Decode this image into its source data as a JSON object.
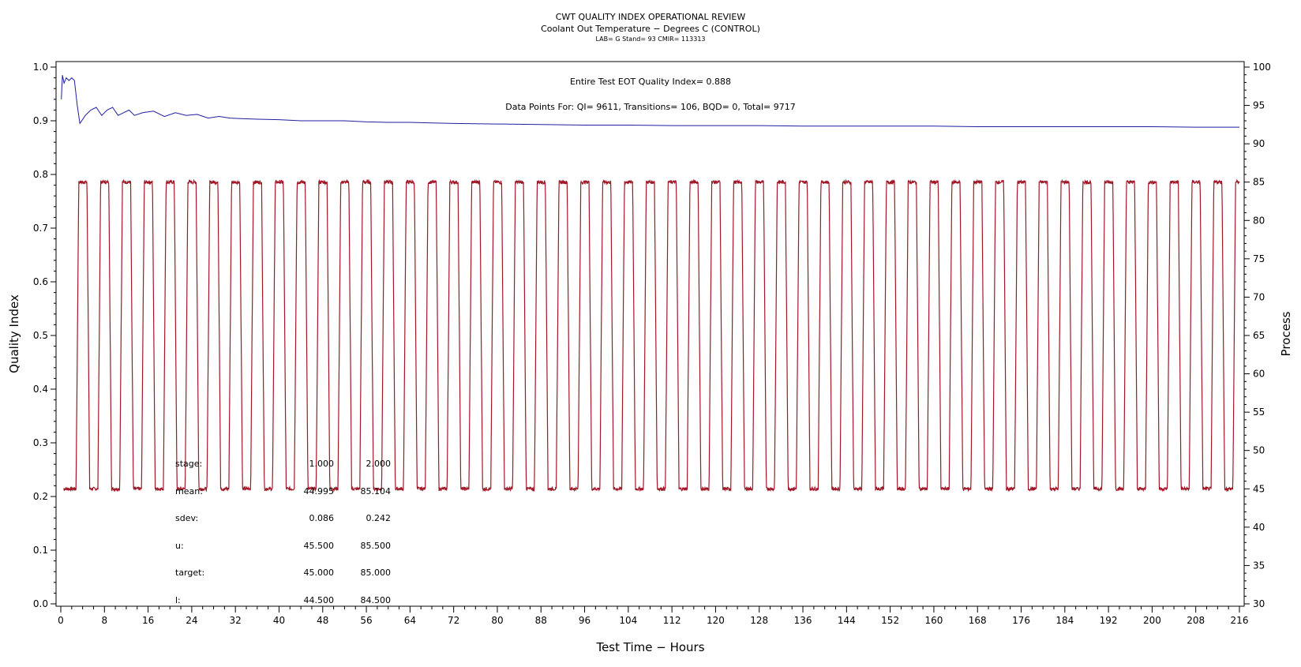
{
  "chart_data": {
    "type": "line",
    "title": "CWT QUALITY INDEX OPERATIONAL REVIEW",
    "subtitle": "Coolant Out Temperature − Degrees C (CONTROL)",
    "subtitle2": "LAB= G Stand= 93 CMIR= 113313",
    "info_line1": "Entire Test EOT Quality Index=   0.888",
    "info_line2": "Data Points For: QI=   9611, Transitions=    106, BQD=      0, Total=   9717",
    "xlabel": "Test Time − Hours",
    "ylabel": "Quality Index",
    "y2label": "Process",
    "xlim": [
      0,
      216
    ],
    "ylim": [
      0,
      1
    ],
    "y2lim": [
      30,
      100
    ],
    "x_ticks": [
      0,
      8,
      16,
      24,
      32,
      40,
      48,
      56,
      64,
      72,
      80,
      88,
      96,
      104,
      112,
      120,
      128,
      136,
      144,
      152,
      160,
      168,
      176,
      184,
      192,
      200,
      208,
      216
    ],
    "x_tick_labels": [
      "0",
      "8",
      "16",
      "24",
      "32",
      "40",
      "48",
      "56",
      "64",
      "72",
      "80",
      "88",
      "96",
      "104",
      "112",
      "120",
      "128",
      "136",
      "144",
      "152",
      "160",
      "168",
      "176",
      "184",
      "192",
      "200",
      "208",
      "216"
    ],
    "y_ticks": [
      0,
      0.1,
      0.2,
      0.3,
      0.4,
      0.5,
      0.6,
      0.7,
      0.8,
      0.9,
      1.0
    ],
    "y_tick_labels": [
      "0.0",
      "0.1",
      "0.2",
      "0.3",
      "0.4",
      "0.5",
      "0.6",
      "0.7",
      "0.8",
      "0.9",
      "1.0"
    ],
    "y2_ticks": [
      30,
      35,
      40,
      45,
      50,
      55,
      60,
      65,
      70,
      75,
      80,
      85,
      90,
      95,
      100
    ],
    "y2_tick_labels": [
      "30",
      "35",
      "40",
      "45",
      "50",
      "55",
      "60",
      "65",
      "70",
      "75",
      "80",
      "85",
      "90",
      "95",
      "100"
    ],
    "grid": false,
    "series": [
      {
        "name": "Quality Index",
        "axis": "left",
        "color": "#1f1fa0",
        "x": [
          0.1,
          0.3,
          0.6,
          1.0,
          1.5,
          2.0,
          2.5,
          3.0,
          3.5,
          4.5,
          5.5,
          6.5,
          7.5,
          8.5,
          9.5,
          10.5,
          11.5,
          12.5,
          13.5,
          15,
          17,
          19,
          21,
          23,
          25,
          27,
          29,
          31,
          33,
          36,
          40,
          44,
          48,
          52,
          56,
          60,
          64,
          68,
          72,
          80,
          88,
          96,
          104,
          112,
          120,
          128,
          136,
          144,
          152,
          160,
          168,
          176,
          184,
          192,
          200,
          208,
          212,
          216
        ],
        "values": [
          0.94,
          0.985,
          0.97,
          0.98,
          0.975,
          0.98,
          0.975,
          0.93,
          0.895,
          0.91,
          0.92,
          0.925,
          0.91,
          0.92,
          0.925,
          0.91,
          0.915,
          0.92,
          0.91,
          0.915,
          0.918,
          0.908,
          0.915,
          0.91,
          0.912,
          0.905,
          0.908,
          0.905,
          0.904,
          0.903,
          0.902,
          0.9,
          0.9,
          0.9,
          0.898,
          0.897,
          0.897,
          0.896,
          0.895,
          0.894,
          0.893,
          0.892,
          0.892,
          0.891,
          0.891,
          0.891,
          0.89,
          0.89,
          0.89,
          0.89,
          0.889,
          0.889,
          0.889,
          0.889,
          0.889,
          0.888,
          0.888,
          0.888
        ]
      },
      {
        "name": "Process",
        "axis": "right",
        "color": "#a01828",
        "pattern": "square-wave",
        "low": 45.0,
        "high": 85.0,
        "period_hours": 4.0,
        "first_rise_hours": 2.8,
        "high_duration_hours": 1.5,
        "ramp_hours": 0.5,
        "start_hours": 0.5,
        "end_hours": 216
      }
    ],
    "stats_table": {
      "rows": [
        {
          "label": "stage:",
          "v1": "1.000",
          "v2": "2.000"
        },
        {
          "label": "mean:",
          "v1": "44.995",
          "v2": "85.104"
        },
        {
          "label": "sdev:",
          "v1": "0.086",
          "v2": "0.242"
        },
        {
          "label": "u:",
          "v1": "45.500",
          "v2": "85.500"
        },
        {
          "label": "target:",
          "v1": "45.000",
          "v2": "85.000"
        },
        {
          "label": "l:",
          "v1": "44.500",
          "v2": "84.500"
        }
      ]
    }
  }
}
